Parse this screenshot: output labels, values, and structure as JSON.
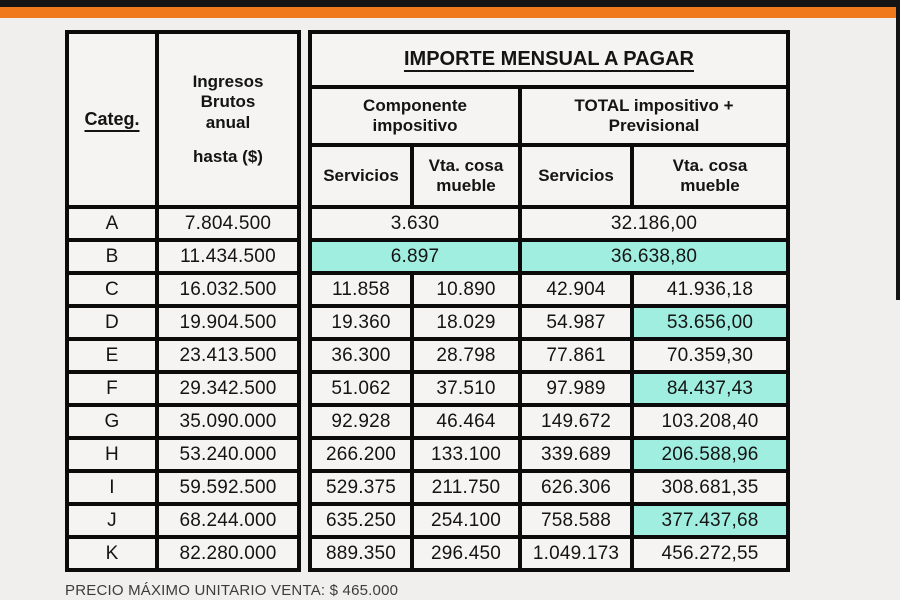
{
  "page": {
    "colors": {
      "top_bar_black": "#141414",
      "accent_orange": "#F0791B",
      "header_teal": "#97E9D9",
      "highlight_teal": "#A0EEDF",
      "cell_background": "#F5F4F2",
      "border_black": "#0B0B0B"
    },
    "footer_note": "PRECIO MÁXIMO UNITARIO VENTA: $ 465.000"
  },
  "table": {
    "header": {
      "categ": "Categ.",
      "ingresos_line1": "Ingresos Brutos anual",
      "ingresos_line2": "hasta ($)",
      "importe_title": "IMPORTE MENSUAL A PAGAR",
      "componente": "Componente impositivo",
      "total": "TOTAL  impositivo + Previsional",
      "servicios_impositivo": "Servicios",
      "vta_impositivo": "Vta. cosa mueble",
      "servicios_total": "Servicios",
      "vta_total": "Vta. cosa mueble"
    },
    "rows": [
      {
        "categ": "A",
        "ingresos": "7.804.500",
        "merged": true,
        "impositivo": "3.630",
        "total": "32.186,00",
        "highlight": false
      },
      {
        "categ": "B",
        "ingresos": "11.434.500",
        "merged": true,
        "impositivo": "6.897",
        "total": "36.638,80",
        "highlight": true
      },
      {
        "categ": "C",
        "ingresos": "16.032.500",
        "merged": false,
        "serv_imp": "11.858",
        "vta_imp": "10.890",
        "serv_tot": "42.904",
        "vta_tot": "41.936,18",
        "vta_tot_highlight": false
      },
      {
        "categ": "D",
        "ingresos": "19.904.500",
        "merged": false,
        "serv_imp": "19.360",
        "vta_imp": "18.029",
        "serv_tot": "54.987",
        "vta_tot": "53.656,00",
        "vta_tot_highlight": true
      },
      {
        "categ": "E",
        "ingresos": "23.413.500",
        "merged": false,
        "serv_imp": "36.300",
        "vta_imp": "28.798",
        "serv_tot": "77.861",
        "vta_tot": "70.359,30",
        "vta_tot_highlight": false
      },
      {
        "categ": "F",
        "ingresos": "29.342.500",
        "merged": false,
        "serv_imp": "51.062",
        "vta_imp": "37.510",
        "serv_tot": "97.989",
        "vta_tot": "84.437,43",
        "vta_tot_highlight": true
      },
      {
        "categ": "G",
        "ingresos": "35.090.000",
        "merged": false,
        "serv_imp": "92.928",
        "vta_imp": "46.464",
        "serv_tot": "149.672",
        "vta_tot": "103.208,40",
        "vta_tot_highlight": false
      },
      {
        "categ": "H",
        "ingresos": "53.240.000",
        "merged": false,
        "serv_imp": "266.200",
        "vta_imp": "133.100",
        "serv_tot": "339.689",
        "vta_tot": "206.588,96",
        "vta_tot_highlight": true
      },
      {
        "categ": "I",
        "ingresos": "59.592.500",
        "merged": false,
        "serv_imp": "529.375",
        "vta_imp": "211.750",
        "serv_tot": "626.306",
        "vta_tot": "308.681,35",
        "vta_tot_highlight": false
      },
      {
        "categ": "J",
        "ingresos": "68.244.000",
        "merged": false,
        "serv_imp": "635.250",
        "vta_imp": "254.100",
        "serv_tot": "758.588",
        "vta_tot": "377.437,68",
        "vta_tot_highlight": true
      },
      {
        "categ": "K",
        "ingresos": "82.280.000",
        "merged": false,
        "serv_imp": "889.350",
        "vta_imp": "296.450",
        "serv_tot": "1.049.173",
        "vta_tot": "456.272,55",
        "vta_tot_highlight": false
      }
    ]
  }
}
